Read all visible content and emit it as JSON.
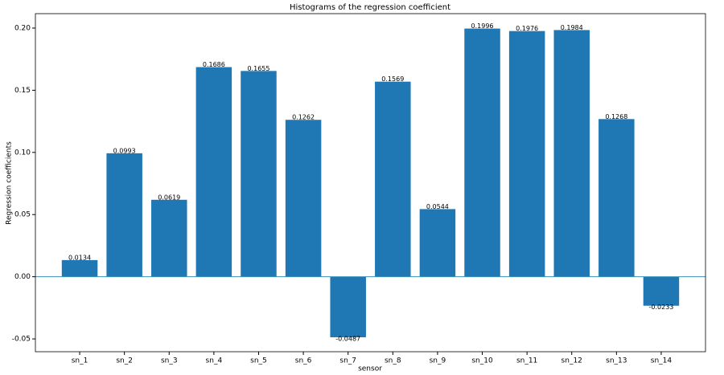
{
  "chart_data": {
    "type": "bar",
    "title": "Histograms of the regression coefficient",
    "x_label": "sensor",
    "y_label": "Regression coefficients",
    "categories": [
      "sn_1",
      "sn_2",
      "sn_3",
      "sn_4",
      "sn_5",
      "sn_6",
      "sn_7",
      "sn_8",
      "sn_9",
      "sn_10",
      "sn_11",
      "sn_12",
      "sn_13",
      "sn_14"
    ],
    "values": [
      0.0134,
      0.0993,
      0.0619,
      0.1686,
      0.1655,
      0.1262,
      -0.0487,
      0.1569,
      0.0544,
      0.1996,
      0.1976,
      0.1984,
      0.1268,
      -0.0233
    ],
    "color": "#1f77b4",
    "ylim": [
      -0.0603,
      0.2116
    ],
    "yticks": [
      {
        "value": -0.05,
        "label": "-0.05"
      },
      {
        "value": 0,
        "label": "0.00"
      },
      {
        "value": 0.05,
        "label": "0.05"
      },
      {
        "value": 0.1,
        "label": "0.10"
      },
      {
        "value": 0.15,
        "label": "0.15"
      },
      {
        "value": 0.2,
        "label": "0.20"
      }
    ],
    "grid": false
  }
}
